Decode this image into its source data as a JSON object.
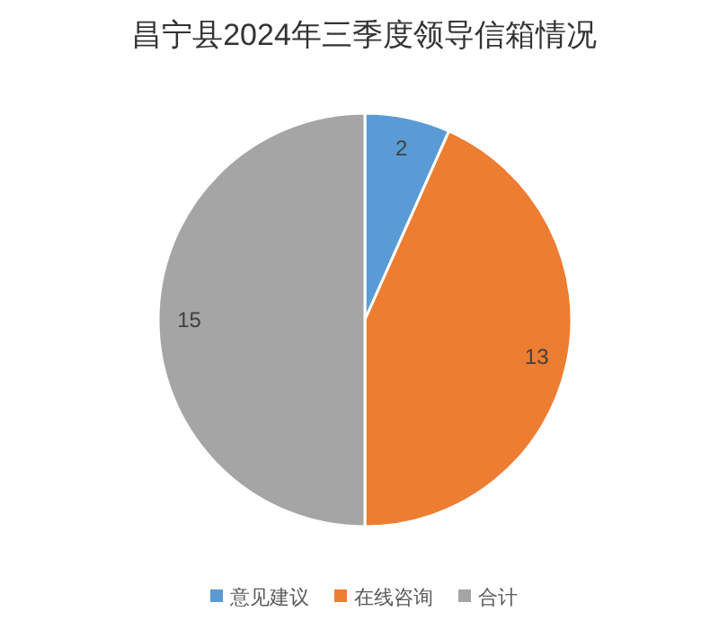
{
  "chart_data": {
    "type": "pie",
    "title": "昌宁县2024年三季度领导信箱情况",
    "categories": [
      "意见建议",
      "在线咨询",
      "合计"
    ],
    "values": [
      2,
      13,
      15
    ],
    "colors": [
      "#5b9bd5",
      "#ed7d31",
      "#a5a5a5"
    ],
    "data_labels": true,
    "legend": "bottom"
  }
}
